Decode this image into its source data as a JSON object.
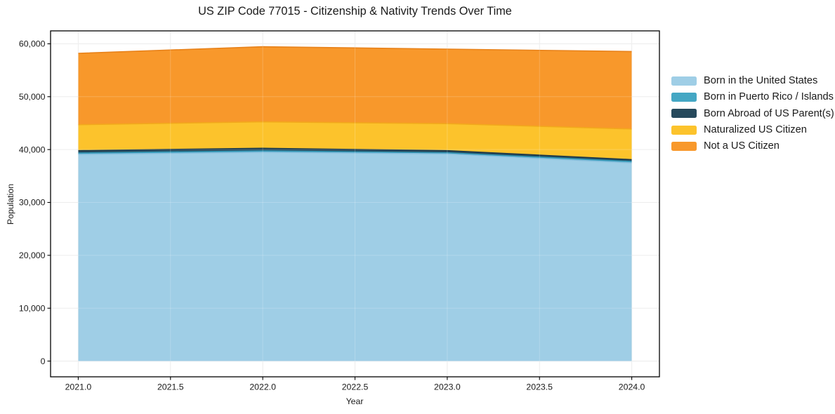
{
  "chart_data": {
    "type": "area",
    "stacked": true,
    "title": "US ZIP Code 77015 - Citizenship & Nativity Trends Over Time",
    "xlabel": "Year",
    "ylabel": "Population",
    "x": [
      2021,
      2022,
      2023,
      2024
    ],
    "xlim": [
      2020.85,
      2024.15
    ],
    "ylim": [
      -2975,
      62445
    ],
    "grid": true,
    "grid_color": "#e9e9e9",
    "legend_position": "right",
    "xticks": {
      "values": [
        2021.0,
        2021.5,
        2022.0,
        2022.5,
        2023.0,
        2023.5,
        2024.0
      ],
      "labels": [
        "2021.0",
        "2021.5",
        "2022.0",
        "2022.5",
        "2023.0",
        "2023.5",
        "2024.0"
      ]
    },
    "yticks": {
      "values": [
        0,
        10000,
        20000,
        30000,
        40000,
        50000,
        60000
      ],
      "labels": [
        "0",
        "10,000",
        "20,000",
        "30,000",
        "40,000",
        "50,000",
        "60,000"
      ]
    },
    "series": [
      {
        "name": "Born in the United States",
        "color": "#9fcee6",
        "edge": "#85bedd",
        "values": [
          39100,
          39500,
          39200,
          37500
        ]
      },
      {
        "name": "Born in Puerto Rico / Islands",
        "color": "#44a7c4",
        "edge": "#2f93b2",
        "values": [
          250,
          250,
          200,
          250
        ]
      },
      {
        "name": "Born Abroad of US Parent(s)",
        "color": "#26495c",
        "edge": "#1d3a4a",
        "values": [
          450,
          500,
          400,
          350
        ]
      },
      {
        "name": "Naturalized US Citizen",
        "color": "#fcc32c",
        "edge": "#f2a81c",
        "values": [
          4900,
          5000,
          5100,
          5800
        ]
      },
      {
        "name": "Not a US Citizen",
        "color": "#f8982b",
        "edge": "#e8821a",
        "values": [
          13500,
          14200,
          14100,
          14650
        ]
      }
    ]
  }
}
